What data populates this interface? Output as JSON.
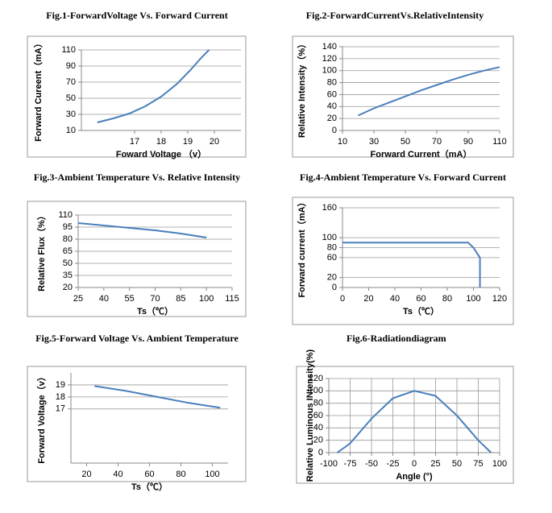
{
  "chart_data": [
    {
      "type": "line",
      "title": "Fig.1-ForwardVoltage Vs. Forward Current",
      "xlabel": "Foward Voltage （v）",
      "ylabel": "Forward Cureent（mA）",
      "x": [
        15.6,
        16.2,
        16.8,
        17.4,
        18,
        18.6,
        19.1,
        19.5,
        19.8
      ],
      "values": [
        20,
        25,
        31,
        40,
        52,
        68,
        85,
        100,
        110
      ],
      "color": "#4a7ebb",
      "xlim": [
        15,
        21
      ],
      "xticks": [
        17,
        18,
        19,
        20
      ],
      "ylim": [
        10,
        110
      ],
      "yticks": [
        10,
        30,
        50,
        70,
        90,
        110
      ],
      "grid": "y"
    },
    {
      "type": "line",
      "title": "Fig.2-ForwardCurrentVs.RelativeIntensity",
      "xlabel": "Forward Current（mA）",
      "ylabel": "Relative Intensity（%）",
      "x": [
        20,
        30,
        40,
        50,
        60,
        70,
        80,
        90,
        100,
        110
      ],
      "values": [
        25,
        37,
        47,
        57,
        67,
        76,
        85,
        93,
        100,
        106
      ],
      "color": "#4a7ebb",
      "xlim": [
        10,
        110
      ],
      "xticks": [
        10,
        30,
        50,
        70,
        90,
        110
      ],
      "ylim": [
        0,
        140
      ],
      "yticks": [
        0,
        20,
        40,
        60,
        80,
        100,
        120,
        140
      ],
      "grid": "y"
    },
    {
      "type": "line",
      "title": "Fig.3-Ambient Temperature Vs. Relative Intensity",
      "xlabel": "Ts（℃）",
      "ylabel": "Relative Flux（%）",
      "x": [
        25,
        40,
        55,
        70,
        85,
        100
      ],
      "values": [
        100,
        97,
        94,
        91,
        87,
        82
      ],
      "color": "#4a7ebb",
      "xlim": [
        25,
        115
      ],
      "xticks": [
        25,
        40,
        55,
        70,
        85,
        100,
        115
      ],
      "ylim": [
        20,
        110
      ],
      "yticks": [
        20,
        35,
        50,
        65,
        80,
        95,
        110
      ],
      "grid": "y"
    },
    {
      "type": "line",
      "title": "Fig.4-Ambient Temperature Vs. Forward Current",
      "xlabel": "Ts（℃）",
      "ylabel": "Forward current（mA）",
      "x": [
        0,
        96,
        100,
        105,
        105
      ],
      "values": [
        90,
        90,
        80,
        60,
        0
      ],
      "color": "#4a7ebb",
      "xlim": [
        0,
        120
      ],
      "xticks": [
        0,
        20,
        40,
        60,
        80,
        100,
        120
      ],
      "ylim": [
        0,
        160
      ],
      "yticks": [
        0,
        20,
        60,
        80,
        100,
        160
      ],
      "grid": "y"
    },
    {
      "type": "line",
      "title": "Fig.5-Forward Voltage Vs. Ambient Temperature",
      "xlabel": "Ts（℃）",
      "ylabel": "Forward Voltage（v）",
      "x": [
        25,
        45,
        65,
        85,
        105
      ],
      "values": [
        18.9,
        18.5,
        18.0,
        17.5,
        17.1
      ],
      "color": "#4a7ebb",
      "xlim": [
        10,
        110
      ],
      "xticks": [
        20,
        40,
        60,
        80,
        100
      ],
      "ylim": [
        12.5,
        20
      ],
      "yticks": [
        17,
        18,
        19
      ],
      "grid": "y"
    },
    {
      "type": "line",
      "title": "Fig.6-Radiationdiagram",
      "xlabel": "Angle (°)",
      "ylabel": "Relative Luminous INtensity(%)",
      "x": [
        -90,
        -75,
        -50,
        -25,
        0,
        25,
        50,
        75,
        90
      ],
      "values": [
        0,
        15,
        55,
        88,
        100,
        92,
        60,
        20,
        0
      ],
      "color": "#4a7ebb",
      "xlim": [
        -100,
        100
      ],
      "xticks": [
        -100,
        -75,
        -50,
        -25,
        0,
        25,
        50,
        75,
        100
      ],
      "ylim": [
        0,
        120
      ],
      "yticks": [
        0,
        20,
        40,
        60,
        80,
        100,
        120
      ],
      "grid": "both"
    }
  ]
}
